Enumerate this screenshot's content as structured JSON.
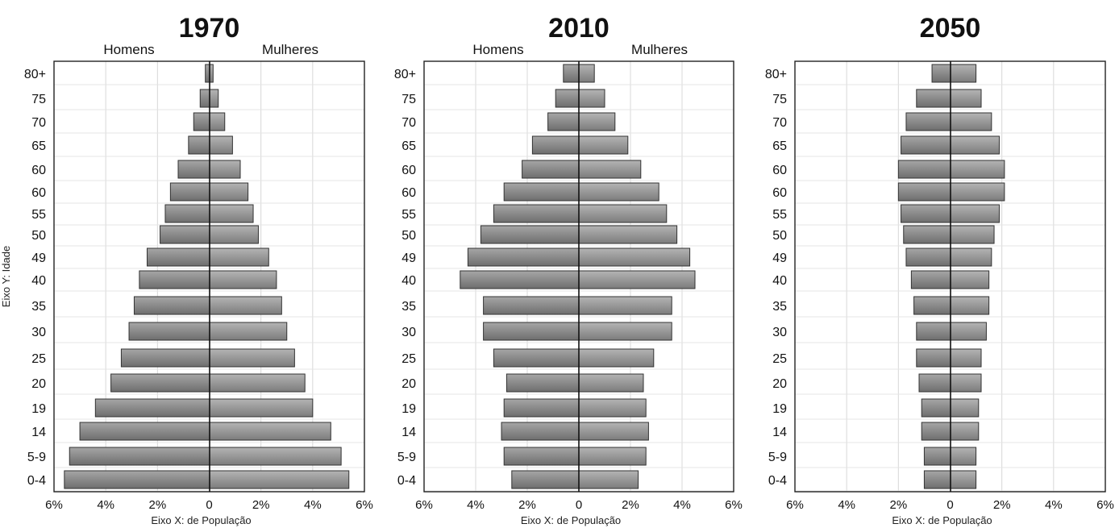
{
  "chart_data": [
    {
      "type": "bar",
      "orientation": "population-pyramid",
      "title": "1970",
      "left_label": "Homens",
      "right_label": "Mulheres",
      "xlabel": "Eixo X: de População",
      "ylabel": "Eixo Y: Idade",
      "xlim": [
        -6,
        6
      ],
      "x_ticks": [
        "6%",
        "4%",
        "2%",
        "0",
        "2%",
        "4%",
        "6%"
      ],
      "grid": true,
      "categories": [
        "0-4",
        "5-9",
        "14",
        "19",
        "20",
        "25",
        "30",
        "35",
        "40",
        "49",
        "50",
        "55",
        "60",
        "60",
        "65",
        "70",
        "75",
        "80+"
      ],
      "series": [
        {
          "values": [
            5.6,
            5.4,
            5.0,
            4.4,
            3.8,
            3.4,
            3.1,
            2.9,
            2.7,
            2.4,
            1.9,
            1.7,
            1.5,
            1.2,
            0.8,
            0.6,
            0.35,
            0.15
          ]
        },
        {
          "values": [
            5.4,
            5.1,
            4.7,
            4.0,
            3.7,
            3.3,
            3.0,
            2.8,
            2.6,
            2.3,
            1.9,
            1.7,
            1.5,
            1.2,
            0.9,
            0.6,
            0.35,
            0.15
          ]
        }
      ]
    },
    {
      "type": "bar",
      "orientation": "population-pyramid",
      "title": "2010",
      "left_label": "Homens",
      "right_label": "Mulheres",
      "xlabel": "Eixo X: de População",
      "ylabel": "",
      "xlim": [
        -6,
        6
      ],
      "x_ticks": [
        "6%",
        "4%",
        "2%",
        "0",
        "2%",
        "4%",
        "6%"
      ],
      "grid": true,
      "categories": [
        "0-4",
        "5-9",
        "14",
        "19",
        "20",
        "25",
        "30",
        "35",
        "40",
        "49",
        "50",
        "55",
        "60",
        "60",
        "65",
        "70",
        "75",
        "80+"
      ],
      "series": [
        {
          "values": [
            2.6,
            2.9,
            3.0,
            2.9,
            2.8,
            3.3,
            3.7,
            3.7,
            4.6,
            4.3,
            3.8,
            3.3,
            2.9,
            2.2,
            1.8,
            1.2,
            0.9,
            0.6
          ]
        },
        {
          "values": [
            2.3,
            2.6,
            2.7,
            2.6,
            2.5,
            2.9,
            3.6,
            3.6,
            4.5,
            4.3,
            3.8,
            3.4,
            3.1,
            2.4,
            1.9,
            1.4,
            1.0,
            0.6
          ]
        }
      ]
    },
    {
      "type": "bar",
      "orientation": "population-pyramid",
      "title": "2050",
      "left_label": "",
      "right_label": "",
      "xlabel": "Eixo X: de População",
      "ylabel": "",
      "xlim": [
        -6,
        6
      ],
      "x_ticks": [
        "6%",
        "4%",
        "2%",
        "0",
        "2%",
        "4%",
        "6%"
      ],
      "grid": true,
      "categories": [
        "0-4",
        "5-9",
        "14",
        "19",
        "20",
        "25",
        "30",
        "35",
        "40",
        "49",
        "50",
        "55",
        "60",
        "60",
        "65",
        "70",
        "75",
        "80+"
      ],
      "series": [
        {
          "values": [
            1.0,
            1.0,
            1.1,
            1.1,
            1.2,
            1.3,
            1.3,
            1.4,
            1.5,
            1.7,
            1.8,
            1.9,
            2.0,
            2.0,
            1.9,
            1.7,
            1.3,
            0.7
          ]
        },
        {
          "values": [
            1.0,
            1.0,
            1.1,
            1.1,
            1.2,
            1.2,
            1.4,
            1.5,
            1.5,
            1.6,
            1.7,
            1.9,
            2.1,
            2.1,
            1.9,
            1.6,
            1.2,
            1.0
          ]
        }
      ]
    }
  ]
}
